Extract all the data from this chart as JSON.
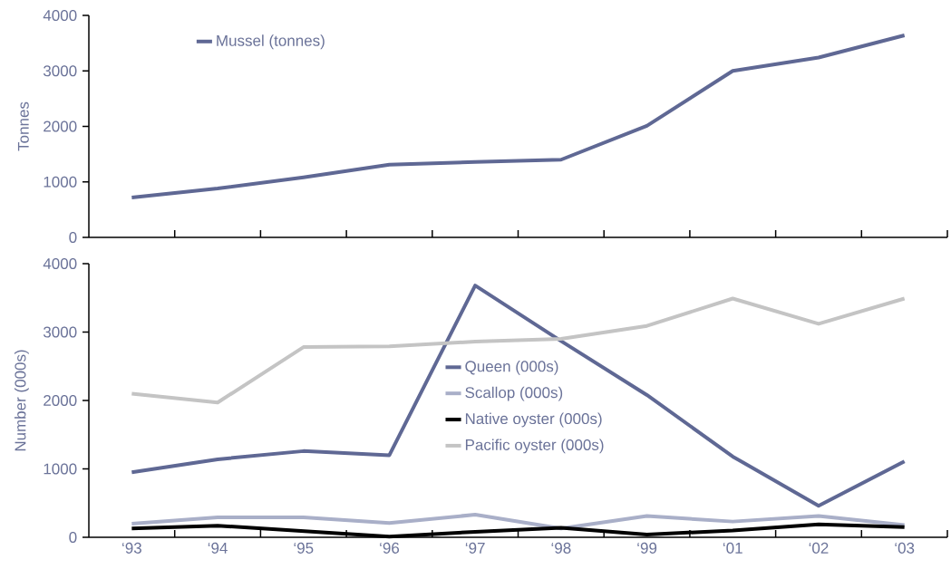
{
  "chart_data": [
    {
      "type": "line",
      "ylabel": "Tonnes",
      "categories": [
        null,
        null,
        null,
        null,
        null,
        null,
        null,
        null,
        null,
        null
      ],
      "ylim": [
        0,
        4000
      ],
      "yticks": [
        0,
        1000,
        2000,
        3000,
        4000
      ],
      "tick_labels": "y",
      "legend": "top left",
      "series": [
        {
          "name": "Mussel (tonnes)",
          "color": "#5f6894",
          "values": [
            720,
            880,
            1080,
            1310,
            1360,
            1400,
            2010,
            3000,
            3240,
            3640
          ]
        }
      ]
    },
    {
      "type": "line",
      "ylabel": "Number (000s)",
      "categories": [
        "‘93",
        "‘94",
        "‘95",
        "‘96",
        "‘97",
        "‘98",
        "‘99",
        "‘01",
        "‘02",
        "‘03"
      ],
      "ylim": [
        0,
        4000
      ],
      "yticks": [
        0,
        1000,
        2000,
        3000,
        4000
      ],
      "legend": "center",
      "series": [
        {
          "name": "Queen (000s)",
          "color": "#5f6894",
          "values": [
            950,
            1140,
            1260,
            1200,
            3680,
            2870,
            2080,
            1180,
            460,
            1110
          ]
        },
        {
          "name": "Scallop (000s)",
          "color": "#a9afc8",
          "values": [
            200,
            290,
            290,
            210,
            330,
            130,
            310,
            230,
            310,
            180
          ]
        },
        {
          "name": "Native oyster (000s)",
          "color": "#000000",
          "values": [
            130,
            170,
            90,
            10,
            80,
            140,
            40,
            100,
            190,
            150
          ]
        },
        {
          "name": "Pacific oyster (000s)",
          "color": "#c4c4c4",
          "values": [
            2100,
            1970,
            2780,
            2790,
            2860,
            2900,
            3090,
            3490,
            3120,
            3490
          ]
        }
      ]
    }
  ]
}
